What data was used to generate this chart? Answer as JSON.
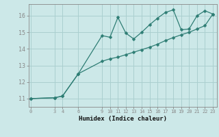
{
  "xlabel": "Humidex (Indice chaleur)",
  "background_color": "#cce8e8",
  "line_color": "#2e7d74",
  "grid_color": "#aacfcf",
  "x_ticks": [
    0,
    3,
    4,
    6,
    9,
    10,
    11,
    12,
    13,
    14,
    15,
    16,
    17,
    18,
    19,
    20,
    21,
    22,
    23
  ],
  "ylim": [
    10.5,
    16.7
  ],
  "xlim": [
    -0.3,
    23.5
  ],
  "yticks": [
    11,
    12,
    13,
    14,
    15,
    16
  ],
  "curve1_x": [
    0,
    3,
    4,
    6,
    9,
    10,
    11,
    12,
    13,
    14,
    15,
    16,
    17,
    18,
    19,
    20,
    21,
    22,
    23
  ],
  "curve1_y": [
    11.0,
    11.05,
    11.15,
    12.5,
    14.8,
    14.7,
    15.9,
    14.95,
    14.6,
    15.0,
    15.45,
    15.85,
    16.2,
    16.35,
    15.15,
    15.2,
    16.0,
    16.3,
    16.1
  ],
  "curve2_x": [
    0,
    3,
    4,
    6,
    9,
    10,
    11,
    12,
    13,
    14,
    15,
    16,
    17,
    18,
    19,
    20,
    21,
    22,
    23
  ],
  "curve2_y": [
    11.0,
    11.05,
    11.15,
    12.5,
    13.25,
    13.4,
    13.5,
    13.65,
    13.8,
    13.95,
    14.1,
    14.28,
    14.5,
    14.68,
    14.85,
    15.0,
    15.2,
    15.4,
    16.1
  ]
}
